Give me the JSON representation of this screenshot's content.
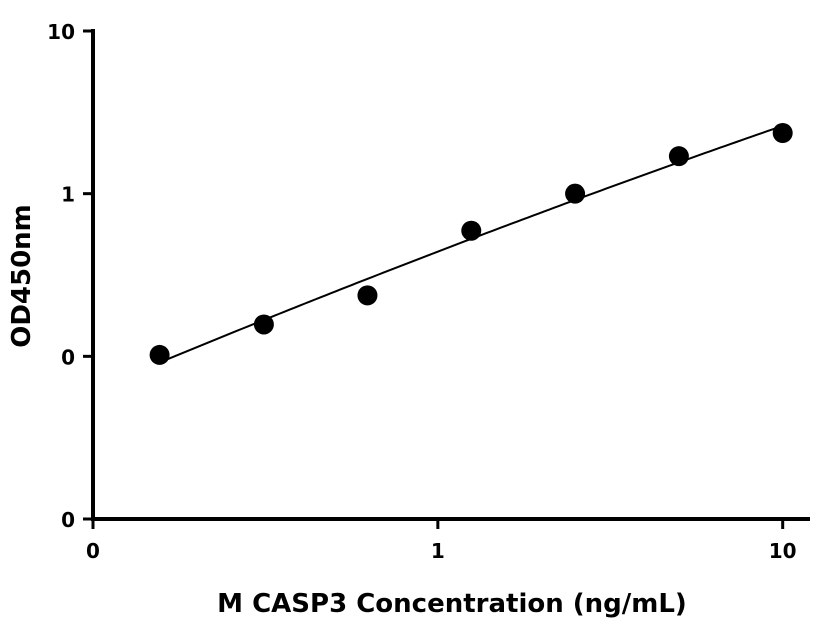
{
  "chart_data": {
    "type": "scatter",
    "xlabel": "M CASP3 Concentration (ng/mL)",
    "ylabel": "OD450nm",
    "x_scale": "log",
    "y_scale": "log",
    "xlim": [
      0.1,
      12
    ],
    "ylim": [
      0.01,
      10
    ],
    "x_ticks": [
      {
        "value": 0.1,
        "label": "0"
      },
      {
        "value": 1,
        "label": "1"
      },
      {
        "value": 10,
        "label": "10"
      }
    ],
    "y_ticks": [
      {
        "value": 0.01,
        "label": "0"
      },
      {
        "value": 0.1,
        "label": "0"
      },
      {
        "value": 1,
        "label": "1"
      },
      {
        "value": 10,
        "label": "10"
      }
    ],
    "grid": false,
    "legend": "none",
    "series": [
      {
        "points": [
          {
            "x": 0.156,
            "y": 0.102
          },
          {
            "x": 0.313,
            "y": 0.157
          },
          {
            "x": 0.625,
            "y": 0.237
          },
          {
            "x": 1.25,
            "y": 0.592
          },
          {
            "x": 2.5,
            "y": 1.0
          },
          {
            "x": 5.0,
            "y": 1.7
          },
          {
            "x": 10.0,
            "y": 2.36
          }
        ],
        "fit_curve": true
      }
    ],
    "colors": {
      "points": "#000000",
      "curve": "#000000",
      "axes": "#000000"
    }
  }
}
